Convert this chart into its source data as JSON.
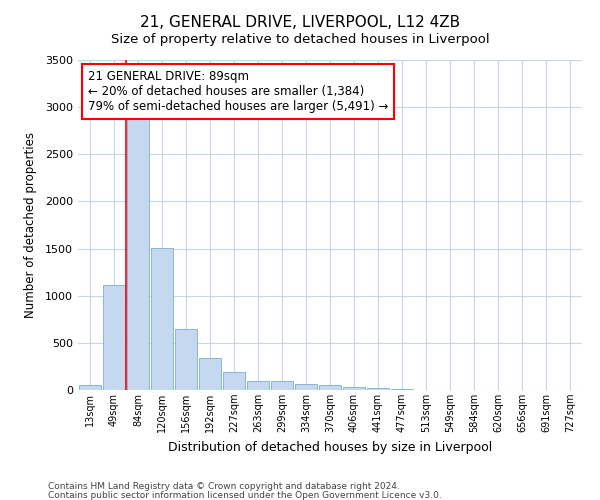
{
  "title": "21, GENERAL DRIVE, LIVERPOOL, L12 4ZB",
  "subtitle": "Size of property relative to detached houses in Liverpool",
  "xlabel": "Distribution of detached houses by size in Liverpool",
  "ylabel": "Number of detached properties",
  "bar_labels": [
    "13sqm",
    "49sqm",
    "84sqm",
    "120sqm",
    "156sqm",
    "192sqm",
    "227sqm",
    "263sqm",
    "299sqm",
    "334sqm",
    "370sqm",
    "406sqm",
    "441sqm",
    "477sqm",
    "513sqm",
    "549sqm",
    "584sqm",
    "620sqm",
    "656sqm",
    "691sqm",
    "727sqm"
  ],
  "bar_values": [
    50,
    1110,
    2940,
    1510,
    650,
    335,
    195,
    95,
    95,
    60,
    55,
    30,
    25,
    8,
    5,
    5,
    4,
    3,
    3,
    3,
    3
  ],
  "bar_color": "#c5d8f0",
  "bar_edge_color": "#7aafd4",
  "annotation_line1": "21 GENERAL DRIVE: 89sqm",
  "annotation_line2": "← 20% of detached houses are smaller (1,384)",
  "annotation_line3": "79% of semi-detached houses are larger (5,491) →",
  "annotation_box_color": "white",
  "annotation_box_edge_color": "red",
  "vline_x_index": 2,
  "vline_color": "red",
  "ylim": [
    0,
    3500
  ],
  "yticks": [
    0,
    500,
    1000,
    1500,
    2000,
    2500,
    3000,
    3500
  ],
  "grid_color": "#c8d4e8",
  "bg_color": "#ffffff",
  "footer1": "Contains HM Land Registry data © Crown copyright and database right 2024.",
  "footer2": "Contains public sector information licensed under the Open Government Licence v3.0.",
  "title_fontsize": 11,
  "subtitle_fontsize": 9.5,
  "annotation_fontsize": 8.5,
  "footer_fontsize": 6.5
}
